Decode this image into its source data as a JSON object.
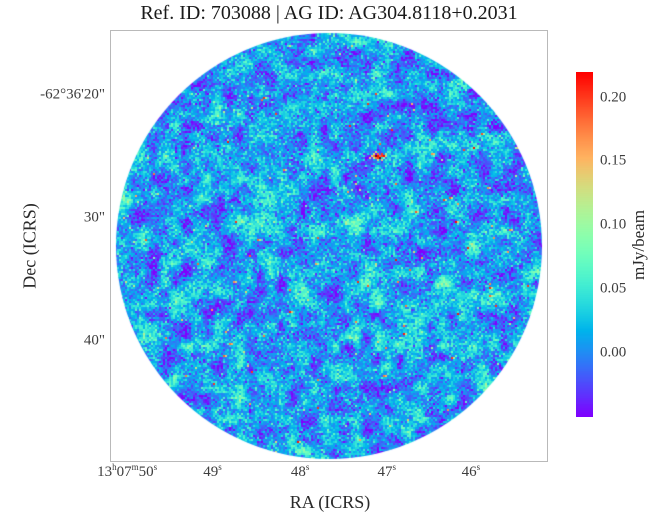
{
  "chart_data": {
    "type": "heatmap",
    "title": "Ref. ID: 703088 | AG ID: AG304.8118+0.2031",
    "ref_id": "703088",
    "ag_id": "AG304.8118+0.2031",
    "xlabel": "RA (ICRS)",
    "ylabel": "Dec (ICRS)",
    "grid": false,
    "x_ticks": [
      {
        "pos": 0.039,
        "parts": [
          [
            "13",
            "h"
          ],
          [
            "07",
            "m"
          ],
          [
            "50",
            "s"
          ]
        ]
      },
      {
        "pos": 0.234,
        "parts": [
          [
            "49",
            "s"
          ]
        ]
      },
      {
        "pos": 0.434,
        "parts": [
          [
            "48",
            "s"
          ]
        ]
      },
      {
        "pos": 0.632,
        "parts": [
          [
            "47",
            "s"
          ]
        ]
      },
      {
        "pos": 0.824,
        "parts": [
          [
            "46",
            "s"
          ]
        ]
      }
    ],
    "y_ticks": [
      {
        "pos": 0.15,
        "label": "-62°36'20\""
      },
      {
        "pos": 0.435,
        "label": "30\""
      },
      {
        "pos": 0.72,
        "label": "40\""
      }
    ],
    "colorbar": {
      "label": "mJy/beam",
      "colormap": "rainbow",
      "vmin": -0.05,
      "vmax": 0.22,
      "tick_values": [
        0.2,
        0.15,
        0.1,
        0.05,
        0.0
      ],
      "tick_labels": [
        "0.20",
        "0.15",
        "0.10",
        "0.05",
        "0.00"
      ],
      "bottom_color": "#8000ff",
      "top_color": "#ff0000"
    },
    "field": {
      "shape": "circular-aperture",
      "content": "radio interferometric noise map, white outside aperture",
      "background": "#ffffff",
      "noise_mean_mjy": 0.01,
      "noise_sigma_mjy": 0.023,
      "seed": 703088,
      "speckle_count": 34,
      "point_source": {
        "name": "AG304.8118+0.2031",
        "x_frac": 0.61,
        "y_frac": 0.289,
        "peak_mjy": 0.22
      }
    }
  }
}
